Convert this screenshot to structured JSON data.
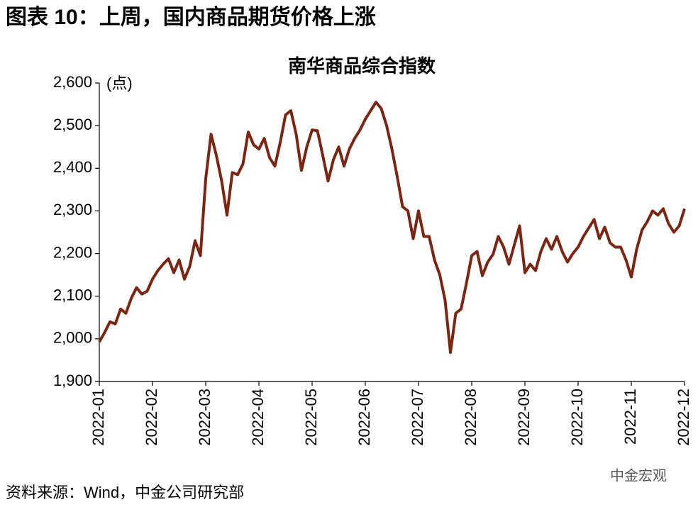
{
  "header": {
    "title": "图表 10：上周，国内商品期货价格上涨"
  },
  "chart_data": {
    "type": "line",
    "title": "南华商品综合指数",
    "unit_label": "(点)",
    "color": "#7b2512",
    "categories": [
      "2022-01",
      null,
      null,
      null,
      null,
      null,
      null,
      null,
      null,
      null,
      "2022-02",
      null,
      null,
      null,
      null,
      null,
      null,
      null,
      null,
      null,
      "2022-03",
      null,
      null,
      null,
      null,
      null,
      null,
      null,
      null,
      null,
      "2022-04",
      null,
      null,
      null,
      null,
      null,
      null,
      null,
      null,
      null,
      "2022-05",
      null,
      null,
      null,
      null,
      null,
      null,
      null,
      null,
      null,
      "2022-06",
      null,
      null,
      null,
      null,
      null,
      null,
      null,
      null,
      null,
      "2022-07",
      null,
      null,
      null,
      null,
      null,
      null,
      null,
      null,
      null,
      "2022-08",
      null,
      null,
      null,
      null,
      null,
      null,
      null,
      null,
      null,
      "2022-09",
      null,
      null,
      null,
      null,
      null,
      null,
      null,
      null,
      null,
      "2022-10",
      null,
      null,
      null,
      null,
      null,
      null,
      null,
      null,
      null,
      "2022-11",
      null,
      null,
      null,
      null,
      null,
      null,
      null,
      null,
      null,
      "2022-12"
    ],
    "values": [
      1993,
      2015,
      2040,
      2035,
      2070,
      2060,
      2095,
      2120,
      2105,
      2112,
      2140,
      2160,
      2175,
      2188,
      2155,
      2185,
      2140,
      2170,
      2230,
      2195,
      2375,
      2480,
      2430,
      2370,
      2290,
      2390,
      2385,
      2410,
      2485,
      2455,
      2445,
      2470,
      2425,
      2405,
      2460,
      2525,
      2535,
      2480,
      2395,
      2450,
      2490,
      2488,
      2430,
      2370,
      2420,
      2450,
      2405,
      2445,
      2470,
      2490,
      2515,
      2535,
      2555,
      2540,
      2500,
      2445,
      2380,
      2310,
      2300,
      2235,
      2300,
      2240,
      2240,
      2185,
      2150,
      2090,
      1968,
      2060,
      2070,
      2130,
      2195,
      2205,
      2148,
      2180,
      2198,
      2240,
      2215,
      2175,
      2220,
      2265,
      2155,
      2175,
      2160,
      2205,
      2235,
      2210,
      2240,
      2205,
      2180,
      2200,
      2215,
      2240,
      2260,
      2280,
      2235,
      2262,
      2225,
      2215,
      2215,
      2185,
      2145,
      2210,
      2255,
      2275,
      2300,
      2290,
      2305,
      2270,
      2250,
      2265,
      2305
    ],
    "ylim": [
      1900,
      2600
    ],
    "yticks": [
      {
        "value": 1900,
        "label": "1,900"
      },
      {
        "value": 2000,
        "label": "2,000"
      },
      {
        "value": 2100,
        "label": "2,100"
      },
      {
        "value": 2200,
        "label": "2,200"
      },
      {
        "value": 2300,
        "label": "2,300"
      },
      {
        "value": 2400,
        "label": "2,400"
      },
      {
        "value": 2500,
        "label": "2,500"
      },
      {
        "value": 2600,
        "label": "2,600"
      }
    ]
  },
  "footer": {
    "source": "资料来源：Wind，中金公司研究部",
    "watermark": "中金宏观"
  }
}
